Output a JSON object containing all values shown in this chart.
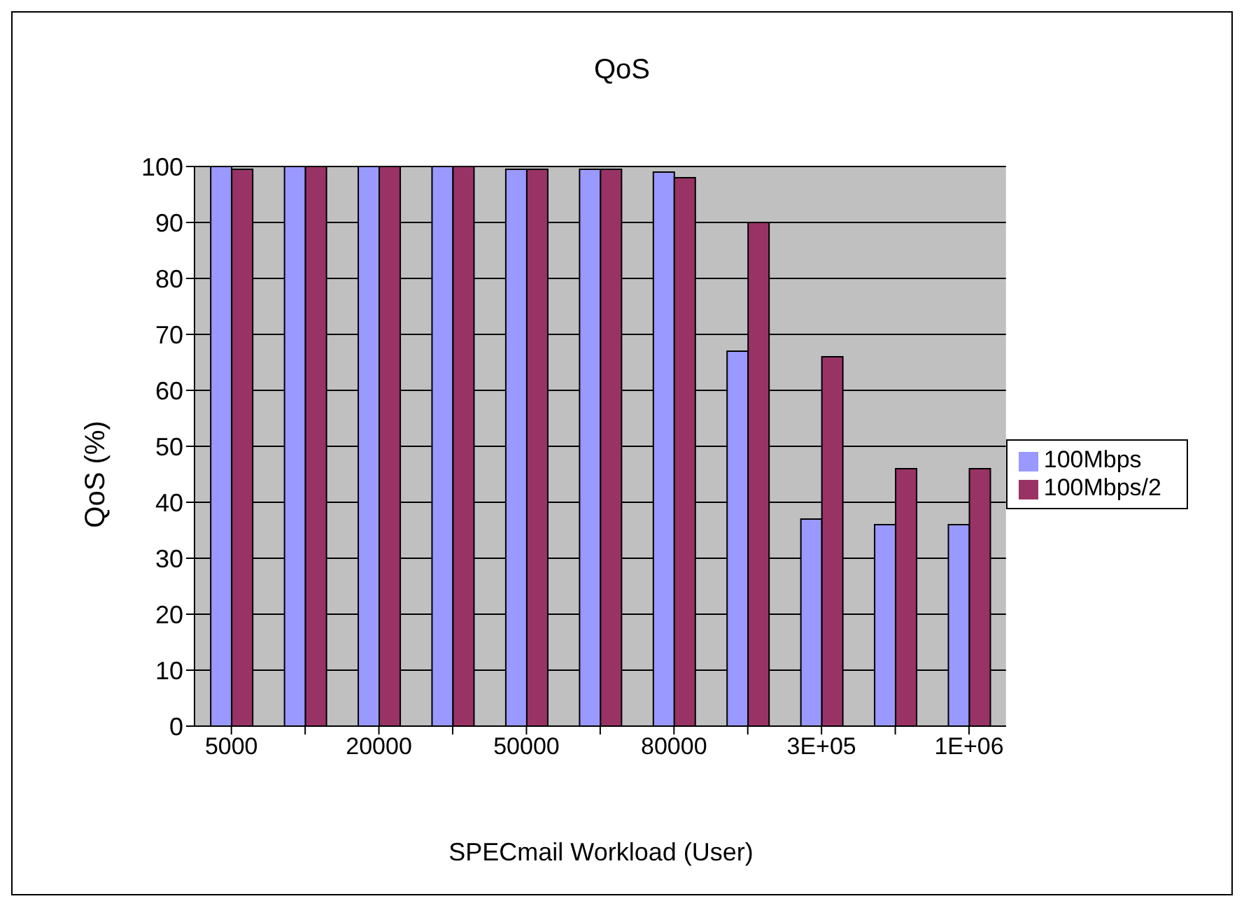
{
  "chart_data": {
    "type": "bar",
    "title": "QoS",
    "xlabel": "SPECmail Workload (User)",
    "ylabel": "QoS (%)",
    "categories": [
      "5000",
      null,
      "20000",
      null,
      "50000",
      null,
      "80000",
      null,
      "3E+05",
      null,
      "1E+06"
    ],
    "series": [
      {
        "name": "100Mbps",
        "color": "#9999ff",
        "values": [
          100,
          100,
          100,
          100,
          99.5,
          99.5,
          99,
          67,
          37,
          36,
          36
        ]
      },
      {
        "name": "100Mbps/2",
        "color": "#993366",
        "values": [
          99.5,
          100,
          100,
          100,
          99.5,
          99.5,
          98,
          90,
          66,
          46,
          46
        ]
      }
    ],
    "ylim": [
      0,
      100
    ],
    "yticks": [
      0,
      10,
      20,
      30,
      40,
      50,
      60,
      70,
      80,
      90,
      100
    ],
    "grid": "y",
    "legend": "right"
  }
}
